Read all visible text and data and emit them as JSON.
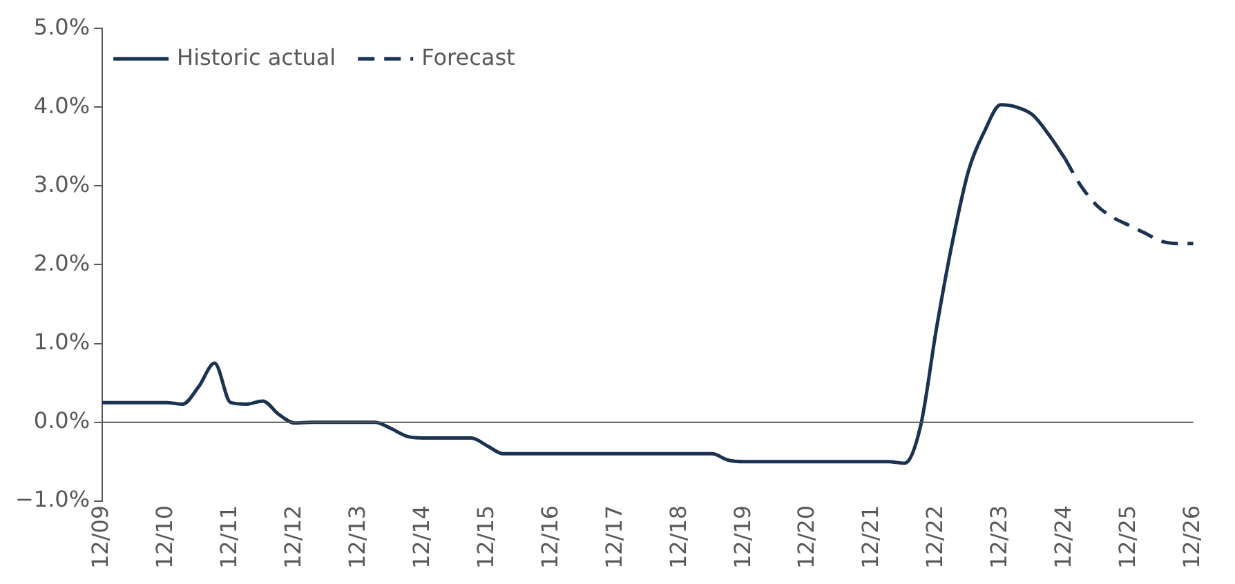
{
  "chart_data": {
    "type": "line",
    "categories": [
      "12/09",
      null,
      null,
      null,
      "12/10",
      null,
      null,
      null,
      "12/11",
      null,
      null,
      null,
      "12/12",
      null,
      null,
      null,
      "12/13",
      null,
      null,
      null,
      "12/14",
      null,
      null,
      null,
      "12/15",
      null,
      null,
      null,
      "12/16",
      null,
      null,
      null,
      "12/17",
      null,
      null,
      null,
      "12/18",
      null,
      null,
      null,
      "12/19",
      null,
      null,
      null,
      "12/20",
      null,
      null,
      null,
      "12/21",
      null,
      null,
      null,
      "12/22",
      null,
      null,
      null,
      "12/23",
      null,
      null,
      null,
      "12/24",
      null,
      null,
      null,
      "12/25",
      null,
      null,
      null,
      "12/26"
    ],
    "series": [
      {
        "name": "Historic actual",
        "color": "#1b3350",
        "line_style": "solid",
        "values": [
          0.25,
          0.25,
          0.25,
          0.25,
          0.25,
          0.23,
          0.45,
          0.75,
          0.25,
          0.23,
          0.27,
          0.1,
          -0.01,
          0,
          0,
          0,
          0,
          0,
          -0.08,
          -0.18,
          -0.2,
          -0.2,
          -0.2,
          -0.2,
          -0.3,
          -0.4,
          -0.4,
          -0.4,
          -0.4,
          -0.4,
          -0.4,
          -0.4,
          -0.4,
          -0.4,
          -0.4,
          -0.4,
          -0.4,
          -0.4,
          -0.4,
          -0.48,
          -0.5,
          -0.5,
          -0.5,
          -0.5,
          -0.5,
          -0.5,
          -0.5,
          -0.5,
          -0.5,
          -0.5,
          -0.52,
          -0.05,
          1.2,
          2.3,
          3.2,
          3.7,
          4.03,
          4.0,
          3.9,
          3.65,
          3.35,
          null,
          null,
          null,
          null,
          null,
          null,
          null,
          null
        ]
      },
      {
        "name": "Forecast",
        "color": "#1b3350",
        "line_style": "dashed",
        "values": [
          null,
          null,
          null,
          null,
          null,
          null,
          null,
          null,
          null,
          null,
          null,
          null,
          null,
          null,
          null,
          null,
          null,
          null,
          null,
          null,
          null,
          null,
          null,
          null,
          null,
          null,
          null,
          null,
          null,
          null,
          null,
          null,
          null,
          null,
          null,
          null,
          null,
          null,
          null,
          null,
          null,
          null,
          null,
          null,
          null,
          null,
          null,
          null,
          null,
          null,
          null,
          null,
          null,
          null,
          null,
          null,
          null,
          null,
          null,
          null,
          3.35,
          3.0,
          2.75,
          2.6,
          2.5,
          2.4,
          2.3,
          2.27,
          2.27
        ]
      }
    ],
    "ylim": [
      -1,
      5
    ],
    "yticks": [
      {
        "value": -1,
        "label": "−1.0%"
      },
      {
        "value": 0,
        "label": "0.0%"
      },
      {
        "value": 1,
        "label": "1.0%"
      },
      {
        "value": 2,
        "label": "2.0%"
      },
      {
        "value": 3,
        "label": "3.0%"
      },
      {
        "value": 4,
        "label": "4.0%"
      },
      {
        "value": 5,
        "label": "5.0%"
      }
    ],
    "ref_lines": [
      {
        "axis": "y",
        "value": 0,
        "color": "#595959"
      }
    ],
    "grid": false,
    "legend": "top left",
    "marker": "none"
  }
}
